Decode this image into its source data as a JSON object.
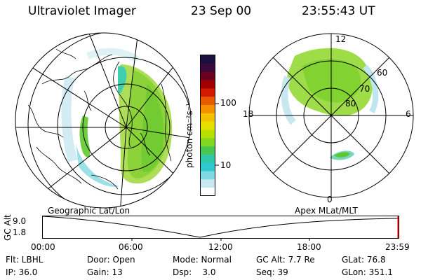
{
  "header": {
    "instrument": "Ultraviolet Imager",
    "date": "23 Sep 00",
    "time": "23:55:43 UT"
  },
  "colorbar": {
    "unit_label": "photon cm⁻²s⁻¹",
    "ticks": [
      "100",
      "10"
    ],
    "colors": [
      "#1a1140",
      "#3a0a3a",
      "#6a0020",
      "#a00000",
      "#d21a00",
      "#e85a00",
      "#f59000",
      "#f4c000",
      "#e6e000",
      "#b8e000",
      "#80d820",
      "#48c850",
      "#30c8a8",
      "#30c8d0",
      "#80d8e0",
      "#c8e8f0",
      "#ffffff"
    ]
  },
  "geo_map": {
    "label": "Geographic Lat/Lon"
  },
  "polar_map": {
    "label": "Apex MLat/MLT",
    "mlt_labels": {
      "top": "12",
      "left": "18",
      "right": "6",
      "bottom": "0"
    },
    "lat_labels": [
      "60",
      "70",
      "80"
    ]
  },
  "altitude_plot": {
    "ylabel": "GC Alt",
    "y_ticks": [
      "9.0",
      "1.8"
    ],
    "x_ticks": [
      "00:00",
      "06:00",
      "12:00",
      "18:00",
      "23:59"
    ]
  },
  "info": {
    "col1": [
      "Flt: LBHL",
      "IP: 36.0"
    ],
    "col2": [
      "Door: Open",
      "Gain: 13"
    ],
    "col3": [
      "Mode: Normal",
      "Dsp:    3.0"
    ],
    "col4": [
      "GC Alt: 7.7 Re",
      "Seq: 39"
    ],
    "col5": [
      "GLat: 76.8",
      "GLon: 351.1"
    ]
  }
}
